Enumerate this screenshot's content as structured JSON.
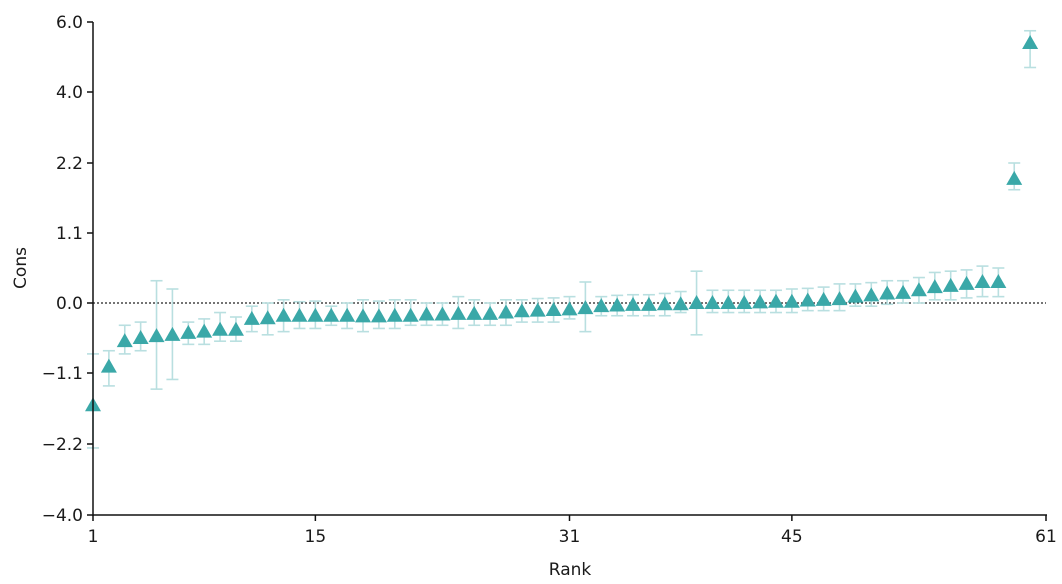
{
  "chart_data": {
    "type": "scatter",
    "xlabel": "Rank",
    "ylabel": "Cons",
    "x_ticks": [
      1,
      15,
      31,
      45,
      61
    ],
    "y_tick_labels": [
      "6.0",
      "4.0",
      "2.2",
      "1.1",
      "0.0",
      "−1.1",
      "−2.2",
      "−4.0"
    ],
    "reference_line": 0.0,
    "marker": "triangle",
    "marker_color": "#3aa8a8",
    "errorbar_color": "#b9dfe0",
    "points": [
      {
        "rank": 1,
        "value": -1.6,
        "low": -2.3,
        "high": -0.8
      },
      {
        "rank": 2,
        "value": -1.0,
        "low": -1.3,
        "high": -0.75
      },
      {
        "rank": 3,
        "value": -0.6,
        "low": -0.8,
        "high": -0.35
      },
      {
        "rank": 4,
        "value": -0.55,
        "low": -0.75,
        "high": -0.3
      },
      {
        "rank": 5,
        "value": -0.52,
        "low": -1.35,
        "high": 0.35
      },
      {
        "rank": 6,
        "value": -0.5,
        "low": -1.2,
        "high": 0.22
      },
      {
        "rank": 7,
        "value": -0.47,
        "low": -0.65,
        "high": -0.3
      },
      {
        "rank": 8,
        "value": -0.45,
        "low": -0.65,
        "high": -0.25
      },
      {
        "rank": 9,
        "value": -0.42,
        "low": -0.6,
        "high": -0.15
      },
      {
        "rank": 10,
        "value": -0.42,
        "low": -0.6,
        "high": -0.22
      },
      {
        "rank": 11,
        "value": -0.25,
        "low": -0.45,
        "high": -0.05
      },
      {
        "rank": 12,
        "value": -0.24,
        "low": -0.5,
        "high": 0.0
      },
      {
        "rank": 13,
        "value": -0.2,
        "low": -0.45,
        "high": 0.05
      },
      {
        "rank": 14,
        "value": -0.2,
        "low": -0.4,
        "high": 0.02
      },
      {
        "rank": 15,
        "value": -0.2,
        "low": -0.4,
        "high": 0.03
      },
      {
        "rank": 16,
        "value": -0.2,
        "low": -0.35,
        "high": -0.05
      },
      {
        "rank": 17,
        "value": -0.2,
        "low": -0.4,
        "high": 0.0
      },
      {
        "rank": 18,
        "value": -0.21,
        "low": -0.45,
        "high": 0.05
      },
      {
        "rank": 19,
        "value": -0.21,
        "low": -0.4,
        "high": 0.03
      },
      {
        "rank": 20,
        "value": -0.2,
        "low": -0.4,
        "high": 0.05
      },
      {
        "rank": 21,
        "value": -0.2,
        "low": -0.35,
        "high": 0.05
      },
      {
        "rank": 22,
        "value": -0.18,
        "low": -0.35,
        "high": 0.0
      },
      {
        "rank": 23,
        "value": -0.18,
        "low": -0.35,
        "high": 0.0
      },
      {
        "rank": 24,
        "value": -0.17,
        "low": -0.4,
        "high": 0.1
      },
      {
        "rank": 25,
        "value": -0.17,
        "low": -0.35,
        "high": 0.05
      },
      {
        "rank": 26,
        "value": -0.17,
        "low": -0.35,
        "high": 0.0
      },
      {
        "rank": 27,
        "value": -0.15,
        "low": -0.35,
        "high": 0.05
      },
      {
        "rank": 28,
        "value": -0.13,
        "low": -0.3,
        "high": 0.05
      },
      {
        "rank": 29,
        "value": -0.12,
        "low": -0.3,
        "high": 0.07
      },
      {
        "rank": 30,
        "value": -0.11,
        "low": -0.3,
        "high": 0.08
      },
      {
        "rank": 31,
        "value": -0.1,
        "low": -0.25,
        "high": 0.1
      },
      {
        "rank": 32,
        "value": -0.08,
        "low": -0.45,
        "high": 0.33
      },
      {
        "rank": 33,
        "value": -0.05,
        "low": -0.2,
        "high": 0.1
      },
      {
        "rank": 34,
        "value": -0.04,
        "low": -0.2,
        "high": 0.12
      },
      {
        "rank": 35,
        "value": -0.03,
        "low": -0.2,
        "high": 0.13
      },
      {
        "rank": 36,
        "value": -0.03,
        "low": -0.2,
        "high": 0.13
      },
      {
        "rank": 37,
        "value": -0.02,
        "low": -0.2,
        "high": 0.15
      },
      {
        "rank": 38,
        "value": -0.02,
        "low": -0.15,
        "high": 0.18
      },
      {
        "rank": 39,
        "value": 0.0,
        "low": -0.5,
        "high": 0.5
      },
      {
        "rank": 40,
        "value": 0.0,
        "low": -0.15,
        "high": 0.2
      },
      {
        "rank": 41,
        "value": 0.0,
        "low": -0.15,
        "high": 0.2
      },
      {
        "rank": 42,
        "value": 0.0,
        "low": -0.15,
        "high": 0.2
      },
      {
        "rank": 43,
        "value": 0.01,
        "low": -0.15,
        "high": 0.2
      },
      {
        "rank": 44,
        "value": 0.02,
        "low": -0.15,
        "high": 0.2
      },
      {
        "rank": 45,
        "value": 0.02,
        "low": -0.15,
        "high": 0.22
      },
      {
        "rank": 46,
        "value": 0.04,
        "low": -0.12,
        "high": 0.23
      },
      {
        "rank": 47,
        "value": 0.05,
        "low": -0.12,
        "high": 0.25
      },
      {
        "rank": 48,
        "value": 0.06,
        "low": -0.12,
        "high": 0.3
      },
      {
        "rank": 49,
        "value": 0.1,
        "low": -0.05,
        "high": 0.3
      },
      {
        "rank": 50,
        "value": 0.12,
        "low": -0.05,
        "high": 0.32
      },
      {
        "rank": 51,
        "value": 0.15,
        "low": -0.02,
        "high": 0.35
      },
      {
        "rank": 52,
        "value": 0.16,
        "low": 0.0,
        "high": 0.35
      },
      {
        "rank": 53,
        "value": 0.2,
        "low": 0.0,
        "high": 0.4
      },
      {
        "rank": 54,
        "value": 0.25,
        "low": 0.05,
        "high": 0.48
      },
      {
        "rank": 55,
        "value": 0.27,
        "low": 0.05,
        "high": 0.5
      },
      {
        "rank": 56,
        "value": 0.3,
        "low": 0.08,
        "high": 0.52
      },
      {
        "rank": 57,
        "value": 0.33,
        "low": 0.1,
        "high": 0.58
      },
      {
        "rank": 58,
        "value": 0.33,
        "low": 0.1,
        "high": 0.55
      },
      {
        "rank": 59,
        "value": 1.95,
        "low": 1.78,
        "high": 2.2
      },
      {
        "rank": 60,
        "value": 5.4,
        "low": 4.7,
        "high": 5.75
      }
    ]
  }
}
